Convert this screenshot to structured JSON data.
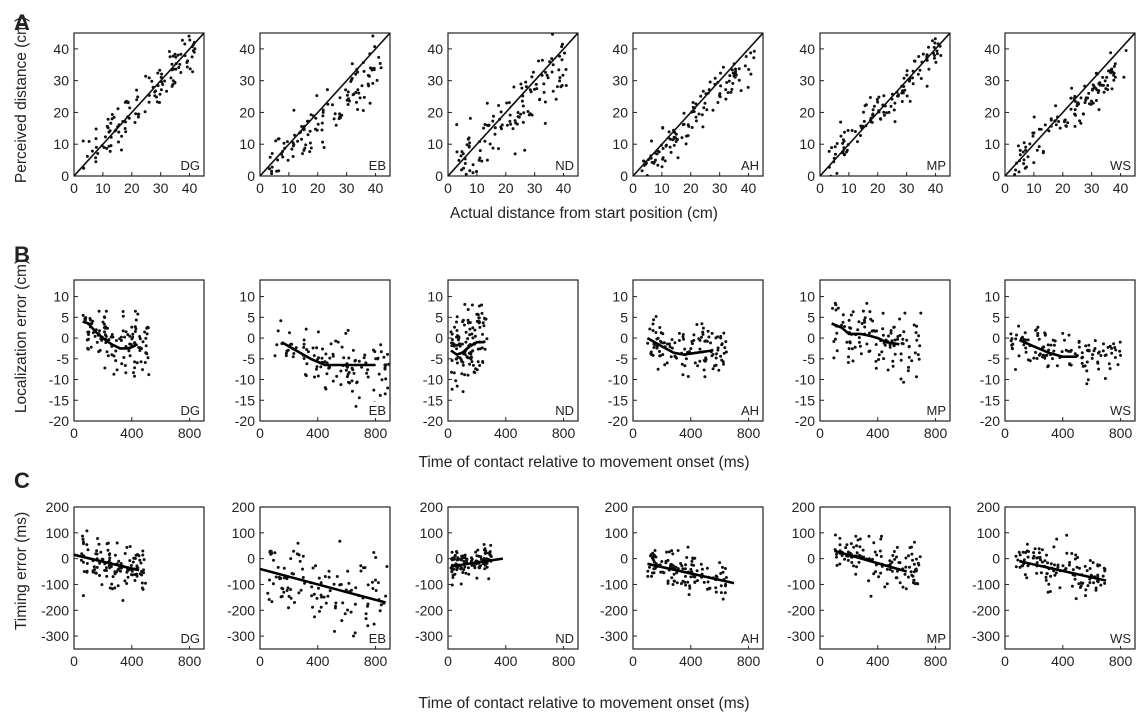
{
  "figure": {
    "panel_labels": [
      "A",
      "B",
      "C"
    ],
    "xlabel_A": "Actual distance from start position (cm)",
    "xlabel_B": "Time of contact relative to movement onset (ms)",
    "xlabel_C": "Time of contact relative to movement onset (ms)",
    "ylabel_A": "Perceived distance (cm)",
    "ylabel_B": "Localization error (cm)",
    "ylabel_C": "Timing error (ms)"
  },
  "chart_data": [
    {
      "type": "scatter",
      "row": "A",
      "xlabel": "Actual distance from start position (cm)",
      "ylabel": "Perceived distance (cm)",
      "xlim": [
        0,
        45
      ],
      "ylim": [
        0,
        45
      ],
      "xticks": [
        0,
        10,
        20,
        30,
        40
      ],
      "yticks": [
        0,
        10,
        20,
        30,
        40
      ],
      "reference_line": "identity (y = x)",
      "subjects": [
        {
          "name": "DG",
          "trend": {
            "type": "linear",
            "slope": 0.98,
            "intercept": 0.5
          },
          "x_range": [
            3,
            42
          ],
          "spread": 3.5
        },
        {
          "name": "EB",
          "trend": {
            "type": "linear",
            "slope": 0.82,
            "intercept": 0.5
          },
          "x_range": [
            3,
            42
          ],
          "spread": 4
        },
        {
          "name": "ND",
          "trend": {
            "type": "linear",
            "slope": 0.85,
            "intercept": 0.0
          },
          "x_range": [
            3,
            42
          ],
          "spread": 5
        },
        {
          "name": "AH",
          "trend": {
            "type": "linear",
            "slope": 0.93,
            "intercept": -1.5
          },
          "x_range": [
            3,
            42
          ],
          "spread": 3
        },
        {
          "name": "MP",
          "trend": {
            "type": "linear",
            "slope": 0.95,
            "intercept": 1.0
          },
          "x_range": [
            3,
            42
          ],
          "spread": 3
        },
        {
          "name": "WS",
          "trend": {
            "type": "linear",
            "slope": 0.85,
            "intercept": 0.5
          },
          "x_range": [
            3,
            42
          ],
          "spread": 3
        }
      ]
    },
    {
      "type": "scatter",
      "row": "B",
      "xlabel": "Time of contact relative to movement onset (ms)",
      "ylabel": "Localization error (cm)",
      "xlim": [
        0,
        900
      ],
      "ylim": [
        -20,
        14
      ],
      "xticks": [
        0,
        400,
        800
      ],
      "yticks": [
        10,
        5,
        0,
        -5,
        -10,
        -15,
        -20
      ],
      "fit": "smoothed curve",
      "subjects": [
        {
          "name": "DG",
          "curve": [
            [
              60,
              4
            ],
            [
              100,
              3.5
            ],
            [
              150,
              1.5
            ],
            [
              200,
              0
            ],
            [
              260,
              -1.5
            ],
            [
              320,
              -2.5
            ],
            [
              380,
              -2.5
            ],
            [
              440,
              -1.5
            ]
          ],
          "x_range": [
            60,
            520
          ],
          "spread": 3.5
        },
        {
          "name": "EB",
          "curve": [
            [
              150,
              -1
            ],
            [
              250,
              -3
            ],
            [
              350,
              -5
            ],
            [
              450,
              -6.5
            ],
            [
              550,
              -6.5
            ],
            [
              650,
              -6.5
            ],
            [
              800,
              -6.5
            ]
          ],
          "x_range": [
            100,
            900
          ],
          "spread": 3.5
        },
        {
          "name": "ND",
          "curve": [
            [
              20,
              -3
            ],
            [
              60,
              -4
            ],
            [
              100,
              -3.5
            ],
            [
              150,
              -2
            ],
            [
              200,
              -1
            ],
            [
              250,
              -1
            ]
          ],
          "x_range": [
            20,
            270
          ],
          "spread": 5
        },
        {
          "name": "AH",
          "curve": [
            [
              100,
              0
            ],
            [
              150,
              -1
            ],
            [
              200,
              -2
            ],
            [
              280,
              -3.5
            ],
            [
              350,
              -4
            ],
            [
              450,
              -3.5
            ],
            [
              550,
              -3
            ]
          ],
          "x_range": [
            100,
            650
          ],
          "spread": 3
        },
        {
          "name": "MP",
          "curve": [
            [
              80,
              3.5
            ],
            [
              150,
              2.5
            ],
            [
              200,
              1
            ],
            [
              280,
              1
            ],
            [
              350,
              0.5
            ],
            [
              400,
              0
            ],
            [
              460,
              -1
            ],
            [
              550,
              -1.5
            ]
          ],
          "x_range": [
            80,
            700
          ],
          "spread": 3.5
        },
        {
          "name": "WS",
          "curve": [
            [
              100,
              -0.5
            ],
            [
              200,
              -2
            ],
            [
              300,
              -3.5
            ],
            [
              400,
              -4.5
            ],
            [
              500,
              -4.5
            ]
          ],
          "x_range": [
            40,
            800
          ],
          "spread": 2.5
        }
      ]
    },
    {
      "type": "scatter",
      "row": "C",
      "xlabel": "Time of contact relative to movement onset (ms)",
      "ylabel": "Timing error (ms)",
      "xlim": [
        0,
        900
      ],
      "ylim": [
        -350,
        200
      ],
      "xticks": [
        0,
        400,
        800
      ],
      "yticks": [
        200,
        100,
        0,
        -100,
        -200,
        -300
      ],
      "fit": "linear regression line",
      "subjects": [
        {
          "name": "DG",
          "line": [
            [
              0,
              15
            ],
            [
              450,
              -45
            ]
          ],
          "x_range": [
            50,
            500
          ],
          "spread": 45
        },
        {
          "name": "EB",
          "line": [
            [
              0,
              -40
            ],
            [
              870,
              -170
            ]
          ],
          "x_range": [
            50,
            880
          ],
          "spread": 70
        },
        {
          "name": "ND",
          "line": [
            [
              20,
              -30
            ],
            [
              380,
              0
            ]
          ],
          "x_range": [
            20,
            300
          ],
          "spread": 30
        },
        {
          "name": "AH",
          "line": [
            [
              100,
              -20
            ],
            [
              700,
              -95
            ]
          ],
          "x_range": [
            100,
            650
          ],
          "spread": 40
        },
        {
          "name": "MP",
          "line": [
            [
              100,
              30
            ],
            [
              600,
              -50
            ]
          ],
          "x_range": [
            100,
            700
          ],
          "spread": 45
        },
        {
          "name": "WS",
          "line": [
            [
              100,
              -10
            ],
            [
              700,
              -85
            ]
          ],
          "x_range": [
            60,
            700
          ],
          "spread": 45
        }
      ]
    }
  ]
}
